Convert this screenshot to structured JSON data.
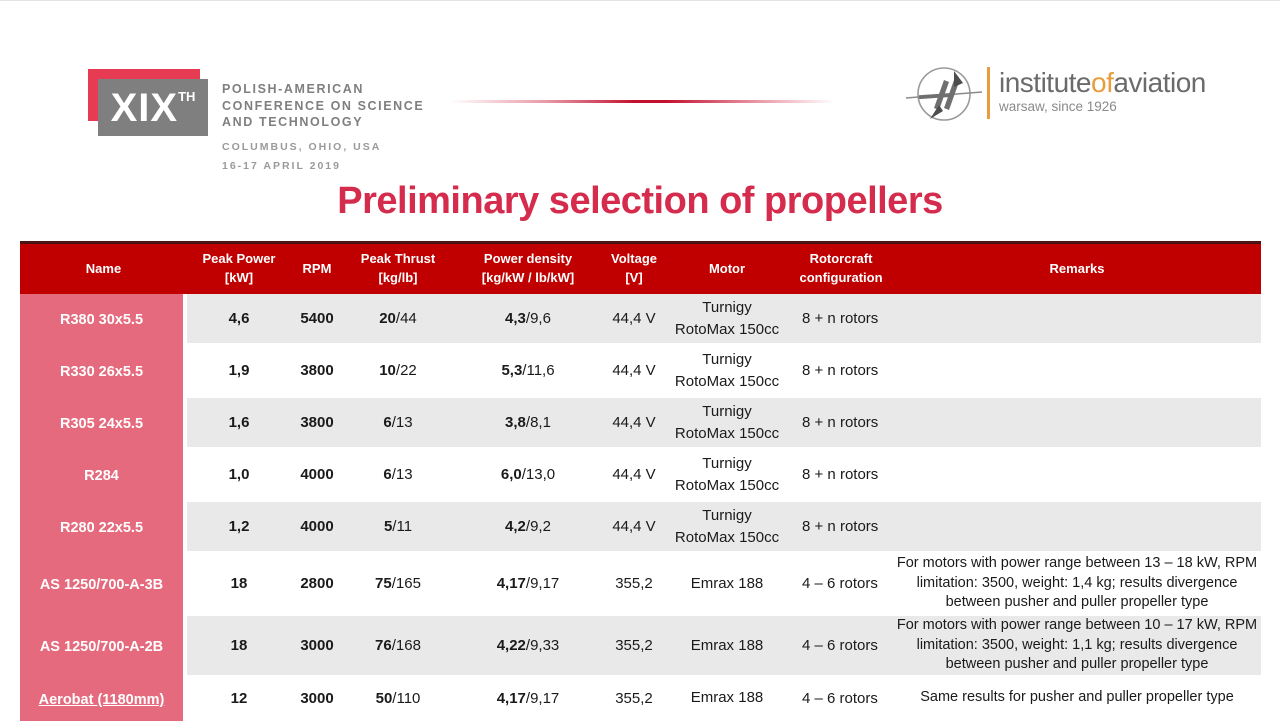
{
  "slide": {
    "title": "Preliminary selection of propellers"
  },
  "header": {
    "conference": {
      "badge": "XIX",
      "badge_sup": "TH",
      "name_lines": "POLISH-AMERICAN\nCONFERENCE ON SCIENCE\nAND TECHNOLOGY",
      "location": "COLUMBUS, OHIO, USA",
      "dates": "16-17 APRIL 2019"
    },
    "institute": {
      "emblem_icon": "propeller-compass-emblem",
      "name_part1": "institute",
      "name_part2": "of",
      "name_part3": "aviation",
      "subtitle": "warsaw, since 1926"
    }
  },
  "colors": {
    "header_red": "#C00000",
    "header_top_border": "#4A1414",
    "name_column_pink": "#E66A7D",
    "row_gray": "#E9E9E9",
    "title_red": "#D52B4C",
    "logo_red": "#E63B52",
    "logo_gray": "#7F7F7F",
    "accent_orange": "#E89C3C",
    "text_gray": "#7F7F7F"
  },
  "table": {
    "columns": [
      "Name",
      "Peak Power\n[kW]",
      "RPM",
      "Peak Thrust\n[kg/lb]",
      "Power density\n[kg/kW / lb/kW]",
      "Voltage\n[V]",
      "Motor",
      "Rotorcraft\nconfiguration",
      "Remarks"
    ],
    "rows": [
      {
        "name": "R380 30x5.5",
        "underline": false,
        "peak_power": "4,6",
        "rpm": "5400",
        "thrust_bold": "20",
        "thrust_rest": "/44",
        "density_bold": "4,3",
        "density_rest": "/9,6",
        "voltage": "44,4 V",
        "motor": "Turnigy\nRotoMax 150cc",
        "configuration": "8 + n rotors",
        "remarks": ""
      },
      {
        "name": "R330 26x5.5",
        "underline": false,
        "peak_power": "1,9",
        "rpm": "3800",
        "thrust_bold": "10",
        "thrust_rest": "/22",
        "density_bold": "5,3",
        "density_rest": "/11,6",
        "voltage": "44,4 V",
        "motor": "Turnigy\nRotoMax 150cc",
        "configuration": "8 + n rotors",
        "remarks": ""
      },
      {
        "name": "R305 24x5.5",
        "underline": false,
        "peak_power": "1,6",
        "rpm": "3800",
        "thrust_bold": "6",
        "thrust_rest": "/13",
        "density_bold": "3,8",
        "density_rest": "/8,1",
        "voltage": "44,4 V",
        "motor": "Turnigy\nRotoMax 150cc",
        "configuration": "8 + n rotors",
        "remarks": ""
      },
      {
        "name": "R284",
        "underline": false,
        "peak_power": "1,0",
        "rpm": "4000",
        "thrust_bold": "6",
        "thrust_rest": "/13",
        "density_bold": "6,0",
        "density_rest": "/13,0",
        "voltage": "44,4 V",
        "motor": "Turnigy\nRotoMax 150cc",
        "configuration": "8 + n rotors",
        "remarks": ""
      },
      {
        "name": "R280 22x5.5",
        "underline": false,
        "peak_power": "1,2",
        "rpm": "4000",
        "thrust_bold": "5",
        "thrust_rest": "/11",
        "density_bold": "4,2",
        "density_rest": "/9,2",
        "voltage": "44,4 V",
        "motor": "Turnigy\nRotoMax 150cc",
        "configuration": "8 + n rotors",
        "remarks": ""
      },
      {
        "name": "AS 1250/700-A-3B",
        "underline": false,
        "peak_power": "18",
        "rpm": "2800",
        "thrust_bold": "75",
        "thrust_rest": "/165",
        "density_bold": "4,17",
        "density_rest": "/9,17",
        "voltage": "355,2",
        "motor": "Emrax 188",
        "configuration": "4 – 6 rotors",
        "remarks": "For motors with power range between 13 – 18 kW, RPM limitation: 3500, weight: 1,4 kg; results divergence between pusher and puller propeller type"
      },
      {
        "name": "AS 1250/700-A-2B",
        "underline": false,
        "peak_power": "18",
        "rpm": "3000",
        "thrust_bold": "76",
        "thrust_rest": "/168",
        "density_bold": "4,22",
        "density_rest": "/9,33",
        "voltage": "355,2",
        "motor": "Emrax 188",
        "configuration": "4 – 6 rotors",
        "remarks": "For motors with power range between 10 – 17 kW, RPM limitation: 3500, weight: 1,1 kg; results divergence between pusher and puller propeller type"
      },
      {
        "name": "Aerobat (1180mm)",
        "underline": true,
        "peak_power": "12",
        "rpm": "3000",
        "thrust_bold": "50",
        "thrust_rest": "/110",
        "density_bold": "4,17",
        "density_rest": "/9,17",
        "voltage": "355,2",
        "motor": "Emrax 188",
        "configuration": "4 – 6 rotors",
        "remarks": "Same results for pusher and puller propeller type"
      }
    ]
  }
}
